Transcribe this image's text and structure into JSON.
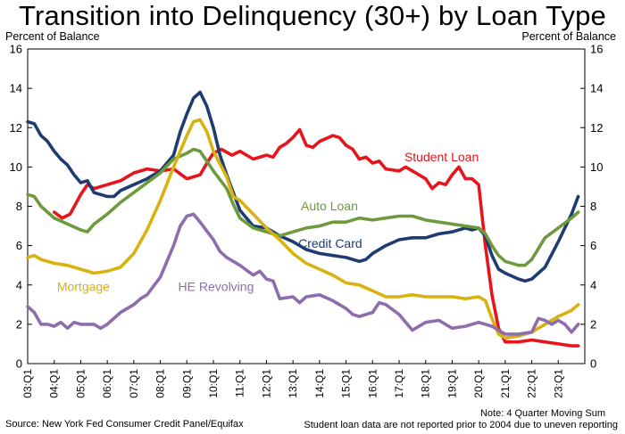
{
  "chart_data": {
    "type": "line",
    "title": "Transition into Delinquency (30+) by Loan Type",
    "y_axis_label_left": "Percent of Balance",
    "y_axis_label_right": "Percent of Balance",
    "ylim": [
      0,
      16
    ],
    "yticks": [
      0,
      2,
      4,
      6,
      8,
      10,
      12,
      14,
      16
    ],
    "x_tick_labels": [
      "03:Q1",
      "04:Q1",
      "05:Q1",
      "06:Q1",
      "07:Q1",
      "08:Q1",
      "09:Q1",
      "10:Q1",
      "11:Q1",
      "12:Q1",
      "13:Q1",
      "14:Q1",
      "15:Q1",
      "16:Q1",
      "17:Q1",
      "18:Q1",
      "19:Q1",
      "20:Q1",
      "21:Q1",
      "22:Q1",
      "23:Q1"
    ],
    "x_range": [
      2003.0,
      2024.0
    ],
    "grid": false,
    "legend": "inline labels",
    "series": [
      {
        "name": "Student Loan",
        "color": "#e8141c",
        "points": [
          [
            2004.0,
            7.7
          ],
          [
            2004.3,
            7.4
          ],
          [
            2004.6,
            7.6
          ],
          [
            2005.0,
            8.6
          ],
          [
            2005.25,
            9.1
          ],
          [
            2005.5,
            8.9
          ],
          [
            2006.0,
            9.1
          ],
          [
            2006.5,
            9.3
          ],
          [
            2007.0,
            9.7
          ],
          [
            2007.5,
            9.9
          ],
          [
            2008.0,
            9.8
          ],
          [
            2008.5,
            9.9
          ],
          [
            2009.0,
            9.4
          ],
          [
            2009.5,
            9.6
          ],
          [
            2009.8,
            10.3
          ],
          [
            2010.0,
            10.7
          ],
          [
            2010.3,
            10.9
          ],
          [
            2010.7,
            10.6
          ],
          [
            2011.0,
            10.8
          ],
          [
            2011.5,
            10.4
          ],
          [
            2012.0,
            10.6
          ],
          [
            2012.25,
            10.5
          ],
          [
            2012.5,
            11.0
          ],
          [
            2012.75,
            11.2
          ],
          [
            2013.0,
            11.5
          ],
          [
            2013.25,
            11.9
          ],
          [
            2013.5,
            11.1
          ],
          [
            2013.75,
            11.0
          ],
          [
            2014.0,
            11.3
          ],
          [
            2014.5,
            11.6
          ],
          [
            2014.75,
            11.5
          ],
          [
            2015.0,
            11.1
          ],
          [
            2015.25,
            10.9
          ],
          [
            2015.5,
            10.4
          ],
          [
            2015.75,
            10.5
          ],
          [
            2016.0,
            10.2
          ],
          [
            2016.25,
            10.3
          ],
          [
            2016.5,
            9.9
          ],
          [
            2017.0,
            9.8
          ],
          [
            2017.25,
            10.0
          ],
          [
            2017.75,
            9.6
          ],
          [
            2018.0,
            9.4
          ],
          [
            2018.25,
            8.9
          ],
          [
            2018.5,
            9.2
          ],
          [
            2018.75,
            9.1
          ],
          [
            2019.0,
            9.6
          ],
          [
            2019.25,
            10.0
          ],
          [
            2019.5,
            9.4
          ],
          [
            2019.75,
            9.4
          ],
          [
            2020.0,
            9.1
          ],
          [
            2020.25,
            6.0
          ],
          [
            2020.5,
            3.5
          ],
          [
            2020.75,
            1.8
          ],
          [
            2021.0,
            1.1
          ],
          [
            2021.5,
            1.1
          ],
          [
            2022.0,
            1.2
          ],
          [
            2022.5,
            1.1
          ],
          [
            2023.0,
            1.0
          ],
          [
            2023.5,
            0.9
          ],
          [
            2023.75,
            0.9
          ]
        ]
      },
      {
        "name": "Credit Card",
        "color": "#1f3c72",
        "points": [
          [
            2003.0,
            12.3
          ],
          [
            2003.25,
            12.2
          ],
          [
            2003.5,
            11.6
          ],
          [
            2003.75,
            11.3
          ],
          [
            2004.0,
            10.8
          ],
          [
            2004.25,
            10.4
          ],
          [
            2004.5,
            10.1
          ],
          [
            2004.75,
            9.6
          ],
          [
            2005.0,
            9.2
          ],
          [
            2005.25,
            9.3
          ],
          [
            2005.5,
            8.7
          ],
          [
            2005.75,
            8.6
          ],
          [
            2006.0,
            8.5
          ],
          [
            2006.25,
            8.5
          ],
          [
            2006.5,
            8.8
          ],
          [
            2007.0,
            9.1
          ],
          [
            2007.5,
            9.4
          ],
          [
            2008.0,
            9.8
          ],
          [
            2008.5,
            10.6
          ],
          [
            2008.75,
            11.8
          ],
          [
            2009.0,
            12.7
          ],
          [
            2009.25,
            13.5
          ],
          [
            2009.5,
            13.8
          ],
          [
            2009.75,
            13.1
          ],
          [
            2010.0,
            12.0
          ],
          [
            2010.25,
            10.6
          ],
          [
            2010.5,
            9.6
          ],
          [
            2010.75,
            8.7
          ],
          [
            2011.0,
            7.8
          ],
          [
            2011.5,
            7.0
          ],
          [
            2012.0,
            6.9
          ],
          [
            2012.5,
            6.5
          ],
          [
            2013.0,
            6.2
          ],
          [
            2013.5,
            5.8
          ],
          [
            2014.0,
            5.6
          ],
          [
            2014.5,
            5.5
          ],
          [
            2015.0,
            5.4
          ],
          [
            2015.5,
            5.2
          ],
          [
            2015.75,
            5.3
          ],
          [
            2016.0,
            5.6
          ],
          [
            2016.5,
            6.0
          ],
          [
            2017.0,
            6.3
          ],
          [
            2017.5,
            6.4
          ],
          [
            2018.0,
            6.4
          ],
          [
            2018.5,
            6.6
          ],
          [
            2019.0,
            6.7
          ],
          [
            2019.5,
            6.9
          ],
          [
            2019.75,
            6.8
          ],
          [
            2020.0,
            6.9
          ],
          [
            2020.25,
            6.5
          ],
          [
            2020.5,
            5.5
          ],
          [
            2020.75,
            4.8
          ],
          [
            2021.0,
            4.6
          ],
          [
            2021.5,
            4.3
          ],
          [
            2021.75,
            4.2
          ],
          [
            2022.0,
            4.3
          ],
          [
            2022.5,
            4.9
          ],
          [
            2023.0,
            6.2
          ],
          [
            2023.5,
            7.6
          ],
          [
            2023.75,
            8.5
          ]
        ]
      },
      {
        "name": "Auto Loan",
        "color": "#6e9a3e",
        "points": [
          [
            2003.0,
            8.6
          ],
          [
            2003.25,
            8.5
          ],
          [
            2003.5,
            8.0
          ],
          [
            2003.75,
            7.7
          ],
          [
            2004.0,
            7.4
          ],
          [
            2004.5,
            7.1
          ],
          [
            2005.0,
            6.8
          ],
          [
            2005.25,
            6.7
          ],
          [
            2005.5,
            7.1
          ],
          [
            2006.0,
            7.6
          ],
          [
            2006.5,
            8.2
          ],
          [
            2007.0,
            8.7
          ],
          [
            2007.5,
            9.2
          ],
          [
            2008.0,
            9.7
          ],
          [
            2008.5,
            10.4
          ],
          [
            2009.0,
            10.7
          ],
          [
            2009.25,
            10.9
          ],
          [
            2009.5,
            10.8
          ],
          [
            2009.75,
            10.3
          ],
          [
            2010.0,
            9.8
          ],
          [
            2010.5,
            8.9
          ],
          [
            2010.75,
            8.1
          ],
          [
            2011.0,
            7.4
          ],
          [
            2011.5,
            6.9
          ],
          [
            2012.0,
            6.7
          ],
          [
            2012.25,
            6.6
          ],
          [
            2012.5,
            6.5
          ],
          [
            2013.0,
            6.7
          ],
          [
            2013.5,
            6.9
          ],
          [
            2014.0,
            7.0
          ],
          [
            2014.5,
            7.2
          ],
          [
            2015.0,
            7.2
          ],
          [
            2015.5,
            7.4
          ],
          [
            2016.0,
            7.3
          ],
          [
            2016.5,
            7.4
          ],
          [
            2017.0,
            7.5
          ],
          [
            2017.5,
            7.5
          ],
          [
            2018.0,
            7.3
          ],
          [
            2018.5,
            7.2
          ],
          [
            2019.0,
            7.1
          ],
          [
            2019.5,
            7.0
          ],
          [
            2020.0,
            6.9
          ],
          [
            2020.25,
            6.6
          ],
          [
            2020.5,
            6.0
          ],
          [
            2020.75,
            5.5
          ],
          [
            2021.0,
            5.2
          ],
          [
            2021.5,
            5.0
          ],
          [
            2021.75,
            5.0
          ],
          [
            2022.0,
            5.3
          ],
          [
            2022.5,
            6.4
          ],
          [
            2023.0,
            6.9
          ],
          [
            2023.5,
            7.4
          ],
          [
            2023.75,
            7.7
          ]
        ]
      },
      {
        "name": "Mortgage",
        "color": "#d8b210",
        "points": [
          [
            2003.0,
            5.4
          ],
          [
            2003.25,
            5.5
          ],
          [
            2003.5,
            5.3
          ],
          [
            2004.0,
            5.1
          ],
          [
            2004.5,
            5.0
          ],
          [
            2005.0,
            4.8
          ],
          [
            2005.5,
            4.6
          ],
          [
            2006.0,
            4.7
          ],
          [
            2006.5,
            4.9
          ],
          [
            2007.0,
            5.6
          ],
          [
            2007.5,
            6.8
          ],
          [
            2008.0,
            8.3
          ],
          [
            2008.5,
            10.0
          ],
          [
            2009.0,
            11.6
          ],
          [
            2009.25,
            12.3
          ],
          [
            2009.5,
            12.4
          ],
          [
            2009.75,
            11.8
          ],
          [
            2010.0,
            10.8
          ],
          [
            2010.5,
            9.5
          ],
          [
            2010.75,
            8.5
          ],
          [
            2011.0,
            8.3
          ],
          [
            2011.5,
            7.6
          ],
          [
            2012.0,
            6.9
          ],
          [
            2012.5,
            6.3
          ],
          [
            2013.0,
            5.6
          ],
          [
            2013.5,
            5.1
          ],
          [
            2014.0,
            4.8
          ],
          [
            2014.5,
            4.5
          ],
          [
            2015.0,
            4.1
          ],
          [
            2015.5,
            4.0
          ],
          [
            2016.0,
            3.7
          ],
          [
            2016.5,
            3.4
          ],
          [
            2017.0,
            3.4
          ],
          [
            2017.5,
            3.5
          ],
          [
            2018.0,
            3.4
          ],
          [
            2018.5,
            3.4
          ],
          [
            2019.0,
            3.4
          ],
          [
            2019.5,
            3.3
          ],
          [
            2020.0,
            3.4
          ],
          [
            2020.25,
            3.2
          ],
          [
            2020.5,
            2.3
          ],
          [
            2020.75,
            1.5
          ],
          [
            2021.0,
            1.3
          ],
          [
            2021.5,
            1.4
          ],
          [
            2022.0,
            1.6
          ],
          [
            2022.5,
            2.0
          ],
          [
            2023.0,
            2.4
          ],
          [
            2023.5,
            2.7
          ],
          [
            2023.75,
            3.0
          ]
        ]
      },
      {
        "name": "HE Revolving",
        "color": "#8e6dac",
        "points": [
          [
            2003.0,
            2.9
          ],
          [
            2003.25,
            2.6
          ],
          [
            2003.5,
            2.0
          ],
          [
            2003.75,
            2.0
          ],
          [
            2004.0,
            1.9
          ],
          [
            2004.25,
            2.1
          ],
          [
            2004.5,
            1.8
          ],
          [
            2004.75,
            2.1
          ],
          [
            2005.0,
            2.0
          ],
          [
            2005.5,
            2.0
          ],
          [
            2005.75,
            1.8
          ],
          [
            2006.0,
            2.0
          ],
          [
            2006.5,
            2.6
          ],
          [
            2007.0,
            3.0
          ],
          [
            2007.25,
            3.3
          ],
          [
            2007.5,
            3.5
          ],
          [
            2008.0,
            4.4
          ],
          [
            2008.5,
            6.0
          ],
          [
            2008.75,
            7.0
          ],
          [
            2009.0,
            7.5
          ],
          [
            2009.25,
            7.6
          ],
          [
            2009.5,
            7.2
          ],
          [
            2010.0,
            6.3
          ],
          [
            2010.25,
            5.7
          ],
          [
            2010.5,
            5.4
          ],
          [
            2011.0,
            5.0
          ],
          [
            2011.5,
            4.5
          ],
          [
            2011.75,
            4.7
          ],
          [
            2012.0,
            4.3
          ],
          [
            2012.25,
            4.2
          ],
          [
            2012.5,
            3.3
          ],
          [
            2013.0,
            3.4
          ],
          [
            2013.25,
            3.1
          ],
          [
            2013.5,
            3.4
          ],
          [
            2014.0,
            3.5
          ],
          [
            2014.5,
            3.2
          ],
          [
            2015.0,
            2.8
          ],
          [
            2015.25,
            2.5
          ],
          [
            2015.5,
            2.4
          ],
          [
            2016.0,
            2.6
          ],
          [
            2016.25,
            3.1
          ],
          [
            2016.5,
            3.0
          ],
          [
            2017.0,
            2.5
          ],
          [
            2017.25,
            2.1
          ],
          [
            2017.5,
            1.7
          ],
          [
            2018.0,
            2.1
          ],
          [
            2018.5,
            2.2
          ],
          [
            2019.0,
            1.8
          ],
          [
            2019.5,
            1.9
          ],
          [
            2020.0,
            2.1
          ],
          [
            2020.5,
            1.9
          ],
          [
            2020.75,
            1.7
          ],
          [
            2021.0,
            1.5
          ],
          [
            2021.5,
            1.5
          ],
          [
            2022.0,
            1.6
          ],
          [
            2022.25,
            2.3
          ],
          [
            2022.5,
            2.2
          ],
          [
            2022.75,
            2.0
          ],
          [
            2023.0,
            2.2
          ],
          [
            2023.25,
            2.0
          ],
          [
            2023.5,
            1.6
          ],
          [
            2023.75,
            2.0
          ]
        ]
      }
    ],
    "source": "Source: New York Fed Consumer Credit Panel/Equifax",
    "notes": [
      "Note: 4 Quarter Moving Sum",
      "Student loan data are not reported prior to 2004 due to uneven reporting"
    ]
  }
}
